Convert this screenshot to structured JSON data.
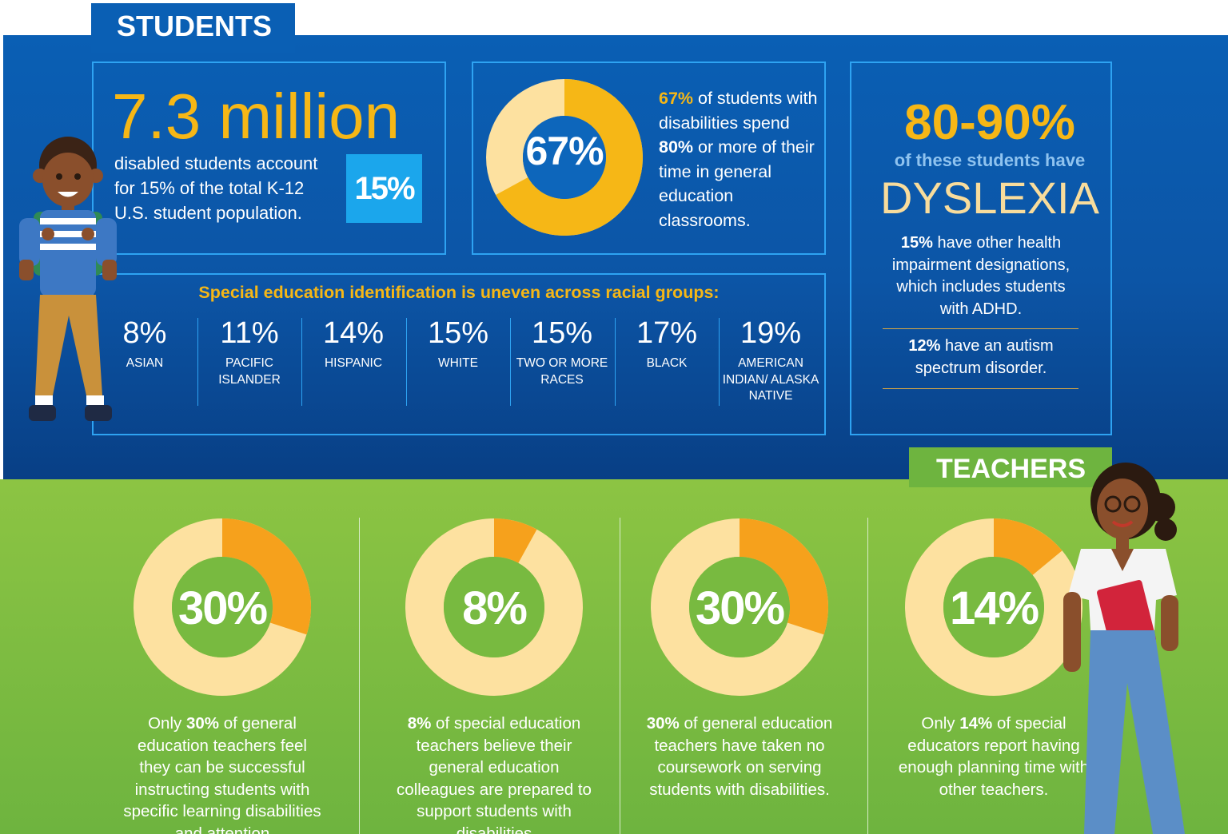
{
  "students": {
    "tab_label": "STUDENTS",
    "total": {
      "headline": "7.3 million",
      "description": "disabled students account for 15% of the total K-12 U.S. student population.",
      "badge": "15%"
    },
    "general_ed": {
      "donut_label": "67%",
      "value_pct": 67,
      "desc_pct": "67%",
      "desc_1": " of students with disabilities spend ",
      "desc_bold": "80%",
      "desc_2": " or more of their time in general education classrooms."
    },
    "dyslexia": {
      "range": "80-90%",
      "subtitle": "of these students have",
      "word": "DYSLEXIA",
      "note1_bold": "15%",
      "note1_text": " have other health impairment designations, which includes students with ADHD.",
      "note2_bold": "12%",
      "note2_text": " have an autism spectrum disorder."
    },
    "races": {
      "title": "Special education identification is uneven across racial groups:",
      "items": [
        {
          "pct": "8%",
          "label": "ASIAN"
        },
        {
          "pct": "11%",
          "label": "PACIFIC ISLANDER"
        },
        {
          "pct": "14%",
          "label": "HISPANIC"
        },
        {
          "pct": "15%",
          "label": "WHITE"
        },
        {
          "pct": "15%",
          "label": "TWO OR MORE RACES"
        },
        {
          "pct": "17%",
          "label": "BLACK"
        },
        {
          "pct": "19%",
          "label": "AMERICAN INDIAN/ ALASKA NATIVE"
        }
      ]
    }
  },
  "teachers": {
    "tab_label": "TEACHERS",
    "stats": [
      {
        "label": "30%",
        "value_pct": 30,
        "pre": "Only ",
        "bold": "30%",
        "text": " of general education teachers feel they can be successful instructing students with specific learning disabilities and attention"
      },
      {
        "label": "8%",
        "value_pct": 8,
        "pre": "",
        "bold": "8%",
        "text": " of special education teachers believe their general education colleagues are prepared to support students with disabilities"
      },
      {
        "label": "30%",
        "value_pct": 30,
        "pre": "",
        "bold": "30%",
        "text": " of general education teachers have taken no coursework on serving students with disabilities."
      },
      {
        "label": "14%",
        "value_pct": 14,
        "pre": "Only ",
        "bold": "14%",
        "text": " of special educators report having enough planning time with other teachers."
      }
    ]
  },
  "colors": {
    "blue": "#0a5fb4",
    "gold": "#f6b716",
    "panel_border": "#2ea3f2",
    "green": "#6eb43f",
    "donut_light": "#fde1a0",
    "donut_dark": "#f6a11c"
  }
}
